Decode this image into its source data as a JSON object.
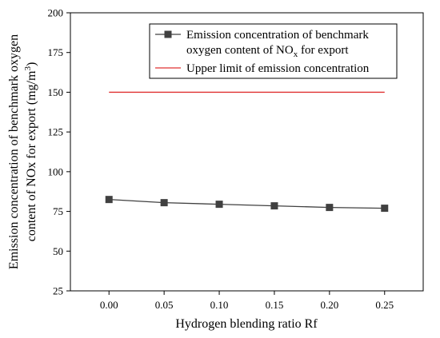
{
  "chart_data": {
    "type": "line",
    "x": [
      0.0,
      0.05,
      0.1,
      0.15,
      0.2,
      0.25
    ],
    "x_tick_labels": [
      "0.00",
      "0.05",
      "0.10",
      "0.15",
      "0.20",
      "0.25"
    ],
    "xlim": [
      -0.035,
      0.285
    ],
    "ylim": [
      25,
      200
    ],
    "y_ticks": [
      25,
      50,
      75,
      100,
      125,
      150,
      175,
      200
    ],
    "xlabel": "Hydrogen blending ratio Rf",
    "ylabel_line1": "Emission concentration of benchmark oxygen",
    "ylabel_line2_prefix": "content of NOx for export (mg/m",
    "ylabel_line2_sup": "3",
    "ylabel_line2_suffix": ")",
    "grid": false,
    "legend_position": "top-right",
    "series": [
      {
        "name_line1": "Emission concentration of benchmark",
        "name_line2_prefix": "oxygen content of NO",
        "name_line2_sub": "x",
        "name_line2_suffix": " for export",
        "values": [
          82.5,
          80.5,
          79.5,
          78.5,
          77.5,
          77.0
        ],
        "color": "#404040",
        "marker": "square"
      },
      {
        "name": "Upper limit of emission concentration",
        "values": [
          150,
          150,
          150,
          150,
          150,
          150
        ],
        "color": "#e03030",
        "marker": "none"
      }
    ]
  }
}
